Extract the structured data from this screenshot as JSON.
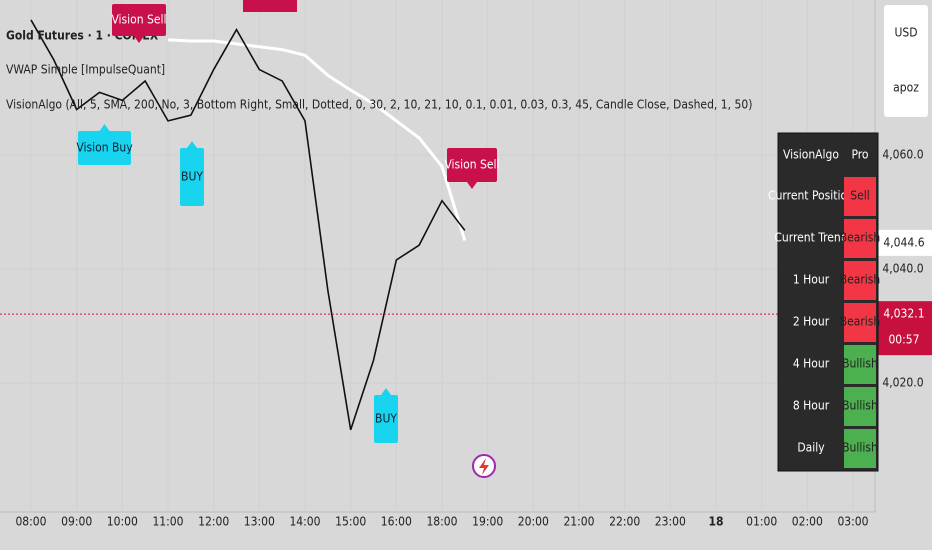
{
  "chart_data": {
    "type": "line",
    "title": "Gold Futures · 1 · COMEX",
    "indicators": [
      "VWAP Simple [ImpulseQuant]",
      "VisionAlgo (All, 5, SMA, 200, No, 3, Bottom Right, Small, Dotted, 0, 30, 2, 10, 21, 10, 0.1, 0.01, 0.03, 0.3, 45, Candle Close, Dashed, 1, 50)"
    ],
    "categories": [
      "08:00",
      null,
      "09:00",
      null,
      "10:00",
      null,
      "11:00",
      null,
      "12:00",
      null,
      "13:00",
      null,
      "14:00",
      null,
      "15:00",
      null,
      "16:00",
      null,
      "18:00",
      null,
      "19:00",
      null,
      "20:00",
      null,
      "21:00",
      null,
      "22:00",
      null,
      "23:00",
      null,
      "18",
      null,
      "01:00",
      null,
      "02:00",
      null,
      "03:00"
    ],
    "series": [
      {
        "color": "#111111",
        "values": [
          4083.7,
          4076.7,
          4068,
          4071,
          4069.6,
          4073,
          4066,
          4067,
          4075,
          4082,
          4075,
          4073,
          4066,
          4036.3,
          4011.8,
          4024,
          4041.6,
          4044.2,
          4052,
          4046.8,
          null,
          null,
          null,
          null,
          null,
          null,
          null,
          null,
          null,
          null,
          null,
          null,
          null,
          null,
          null,
          null,
          null
        ]
      },
      {
        "name": "VWAP Simple [ImpulseQuant]",
        "color": "#ffffff",
        "values": [
          null,
          null,
          null,
          null,
          null,
          null,
          4080.2,
          4080,
          4080,
          4079.5,
          4079,
          4078.5,
          4077.5,
          4074,
          4071.4,
          4069,
          4066,
          4063,
          4058,
          4045,
          null,
          null,
          null,
          null,
          null,
          null,
          null,
          null,
          null,
          null,
          null,
          null,
          null,
          null,
          null,
          null,
          null
        ]
      }
    ],
    "ylim": [
      3997.4,
      4087.2
    ],
    "yticks": [
      {
        "value": 4020,
        "label": "4,020.0"
      },
      {
        "value": 4040,
        "label": "4,040.0"
      },
      {
        "value": 4060,
        "label": "4,060.0"
      }
    ],
    "currency": "USD",
    "scale_label": "apoz",
    "markers": [
      {
        "value": 4044.6,
        "label": "4,044.6"
      },
      {
        "value": 4032.1,
        "label": "4,032.1",
        "countdown": "00:57"
      }
    ],
    "annotations": [
      "Vision Sell",
      "Vision Buy",
      "BUY",
      "Vision Sell",
      "BUY"
    ]
  },
  "table": {
    "header": [
      "VisionAlgo",
      "Pro"
    ],
    "rows": [
      {
        "label": "Current Position",
        "value": "Sell",
        "color": "#f23645"
      },
      {
        "label": "Current Trend",
        "value": "Bearish",
        "color": "#f23645"
      },
      {
        "label": "1 Hour",
        "value": "Bearish",
        "color": "#f23645"
      },
      {
        "label": "2 Hour",
        "value": "Bearish",
        "color": "#f23645"
      },
      {
        "label": "4 Hour",
        "value": "Bullish",
        "color": "#4caf50"
      },
      {
        "label": "8 Hour",
        "value": "Bullish",
        "color": "#4caf50"
      },
      {
        "label": "Daily",
        "value": "Bullish",
        "color": "#4caf50"
      }
    ]
  }
}
